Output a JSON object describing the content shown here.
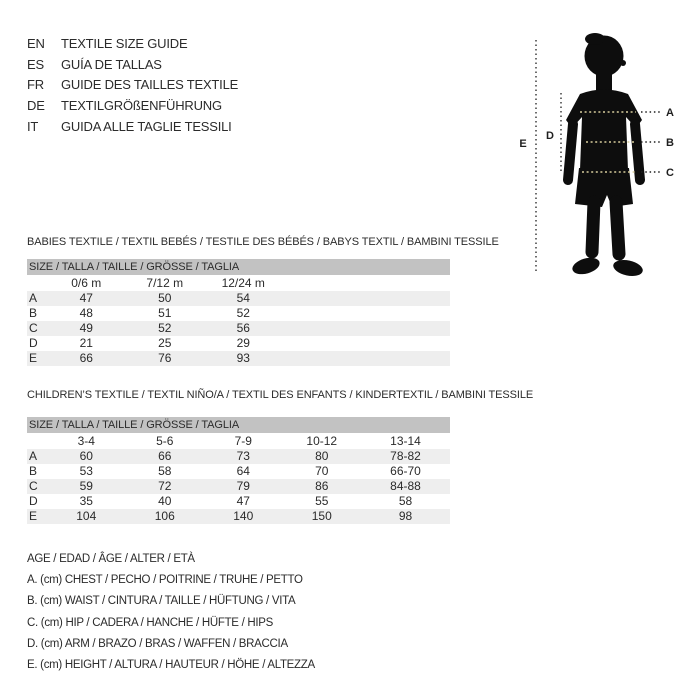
{
  "header": {
    "languages": [
      {
        "code": "EN",
        "title": "TEXTILE SIZE GUIDE"
      },
      {
        "code": "ES",
        "title": "GUÍA DE TALLAS"
      },
      {
        "code": "FR",
        "title": "GUIDE DES TAILLES TEXTILE"
      },
      {
        "code": "DE",
        "title": "TEXTILGRÖßENFÜHRUNG"
      },
      {
        "code": "IT",
        "title": "GUIDA ALLE TAGLIE TESSILI"
      }
    ]
  },
  "figure": {
    "labels": {
      "a": "A",
      "b": "B",
      "c": "C",
      "d": "D",
      "e": "E"
    }
  },
  "babies": {
    "title": "BABIES TEXTILE / TEXTIL BEBÉS / TESTILE DES BÉBÉS / BABYS TEXTIL / BAMBINI TESSILE",
    "size_header": "SIZE / TALLA / TAILLE / GRÖSSE / TAGLIA",
    "columns": [
      "0/6 m",
      "7/12 m",
      "12/24 m"
    ],
    "rows": [
      {
        "label": "A",
        "values": [
          "47",
          "50",
          "54"
        ]
      },
      {
        "label": "B",
        "values": [
          "48",
          "51",
          "52"
        ]
      },
      {
        "label": "C",
        "values": [
          "49",
          "52",
          "56"
        ]
      },
      {
        "label": "D",
        "values": [
          "21",
          "25",
          "29"
        ]
      },
      {
        "label": "E",
        "values": [
          "66",
          "76",
          "93"
        ]
      }
    ]
  },
  "children": {
    "title": "CHILDREN’S TEXTILE / TEXTIL NIÑO/A / TEXTIL DES ENFANTS / KINDERTEXTIL / BAMBINI TESSILE",
    "size_header": "SIZE / TALLA / TAILLE / GRÖSSE / TAGLIA",
    "columns": [
      "3-4",
      "5-6",
      "7-9",
      "10-12",
      "13-14"
    ],
    "rows": [
      {
        "label": "A",
        "values": [
          "60",
          "66",
          "73",
          "80",
          "78-82"
        ]
      },
      {
        "label": "B",
        "values": [
          "53",
          "58",
          "64",
          "70",
          "66-70"
        ]
      },
      {
        "label": "C",
        "values": [
          "59",
          "72",
          "79",
          "86",
          "84-88"
        ]
      },
      {
        "label": "D",
        "values": [
          "35",
          "40",
          "47",
          "55",
          "58"
        ]
      },
      {
        "label": "E",
        "values": [
          "104",
          "106",
          "140",
          "150",
          "98"
        ]
      }
    ]
  },
  "legend": {
    "lines": [
      "AGE / EDAD / ÂGE / ALTER / ETÀ",
      "A. (cm) CHEST / PECHO / POITRINE / TRUHE / PETTO",
      "B. (cm) WAIST / CINTURA / TAILLE / HÜFTUNG / VITA",
      "C. (cm) HIP / CADERA / HANCHE / HÜFTE / HIPS",
      "D. (cm) ARM / BRAZO / BRAS / WAFFEN / BRACCIA",
      "E. (cm) HEIGHT / ALTURA / HAUTEUR / HÖHE / ALTEZZA"
    ]
  },
  "colors": {
    "bar_bg": "#c2c2c2",
    "stripe_bg": "#eeeeee",
    "text": "#2b2b2b",
    "silhouette": "#0d0d0d",
    "dots": "#d6cc9b",
    "ink": "#1f1f1f"
  }
}
